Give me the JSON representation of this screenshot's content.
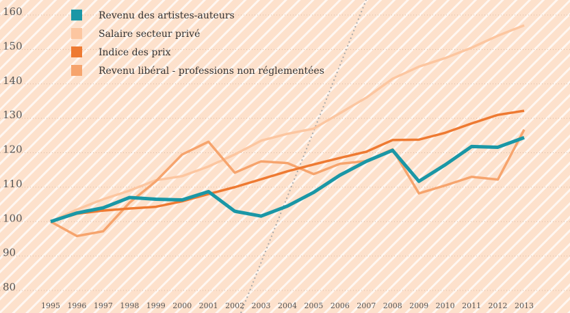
{
  "chart_data": {
    "type": "line",
    "categories": [
      "1995",
      "1996",
      "1997",
      "1998",
      "1999",
      "2000",
      "2001",
      "2002",
      "2003",
      "2004",
      "2005",
      "2006",
      "2007",
      "2008",
      "2009",
      "2010",
      "2011",
      "2012",
      "2013"
    ],
    "series": [
      {
        "name": "Revenu des artistes-auteurs",
        "color": "#1a97a6",
        "width": 5,
        "values": [
          100,
          102.5,
          104,
          107,
          106.5,
          106.3,
          108.7,
          103,
          101.6,
          104.5,
          108.5,
          113.5,
          117.5,
          120.7,
          111.7,
          116.5,
          121.8,
          121.6,
          124.4
        ]
      },
      {
        "name": "Salaire secteur privé",
        "color": "#fcc6a0",
        "width": 3.5,
        "values": [
          100,
          103.5,
          106.5,
          109,
          112,
          113.2,
          116,
          119.5,
          123.5,
          125.5,
          127,
          131.5,
          136,
          141.5,
          145,
          147.5,
          150.5,
          154,
          157
        ]
      },
      {
        "name": "Indice des prix",
        "color": "#ee7a32",
        "width": 3.5,
        "values": [
          100,
          102.3,
          103.2,
          103.8,
          104.3,
          105.9,
          108,
          110,
          112.3,
          114.6,
          116.6,
          118.5,
          120.3,
          123.7,
          123.8,
          125.8,
          128.5,
          131,
          132.2
        ]
      },
      {
        "name": "Revenu libéral - professions non réglementées",
        "color": "#f6a46d",
        "width": 3.5,
        "values": [
          100,
          95.8,
          97.2,
          105.5,
          111.7,
          119.5,
          123.2,
          114.2,
          117.5,
          117,
          113.8,
          116.8,
          117.6,
          121,
          108.2,
          110.5,
          113,
          112.2,
          126.7
        ]
      }
    ],
    "ylim": [
      80,
      160
    ],
    "yticks": [
      80,
      90,
      100,
      110,
      120,
      130,
      140,
      150,
      160
    ],
    "grid": true
  }
}
